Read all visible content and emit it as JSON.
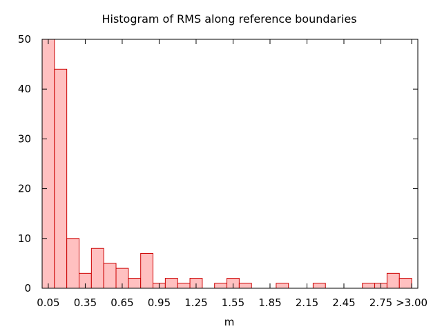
{
  "chart_data": {
    "type": "bar",
    "title": "Histogram of RMS along reference boundaries",
    "xlabel": "m",
    "ylabel": "",
    "ylim": [
      0,
      50
    ],
    "yticks": [
      0,
      10,
      20,
      30,
      40,
      50
    ],
    "xlim": [
      0,
      3.05
    ],
    "bin_width": 0.1,
    "bin_starts": [
      0.0,
      0.1,
      0.2,
      0.3,
      0.4,
      0.5,
      0.6,
      0.7,
      0.8,
      0.9,
      1.0,
      1.1,
      1.2,
      1.3,
      1.4,
      1.5,
      1.6,
      1.7,
      1.8,
      1.9,
      2.0,
      2.1,
      2.2,
      2.3,
      2.4,
      2.5,
      2.6,
      2.7,
      2.8,
      2.9,
      3.0
    ],
    "values": [
      50,
      44,
      10,
      3,
      8,
      5,
      4,
      2,
      7,
      1,
      2,
      1,
      2,
      0,
      1,
      2,
      1,
      0,
      0,
      1,
      0,
      0,
      1,
      0,
      0,
      0,
      1,
      1,
      3,
      2,
      0
    ],
    "xticks": [
      {
        "value": 0.05,
        "label": "0.05"
      },
      {
        "value": 0.35,
        "label": "0.35"
      },
      {
        "value": 0.65,
        "label": "0.65"
      },
      {
        "value": 0.95,
        "label": "0.95"
      },
      {
        "value": 1.25,
        "label": "1.25"
      },
      {
        "value": 1.55,
        "label": "1.55"
      },
      {
        "value": 1.85,
        "label": "1.85"
      },
      {
        "value": 2.15,
        "label": "2.15"
      },
      {
        "value": 2.45,
        "label": "2.45"
      },
      {
        "value": 2.75,
        "label": "2.75"
      },
      {
        "value": 3.0,
        "label": ">3.00"
      }
    ],
    "colors": {
      "bar_fill": "#ffc0c0",
      "bar_stroke": "#cc0000",
      "axis": "#000000"
    },
    "grid": false,
    "legend": "none"
  }
}
